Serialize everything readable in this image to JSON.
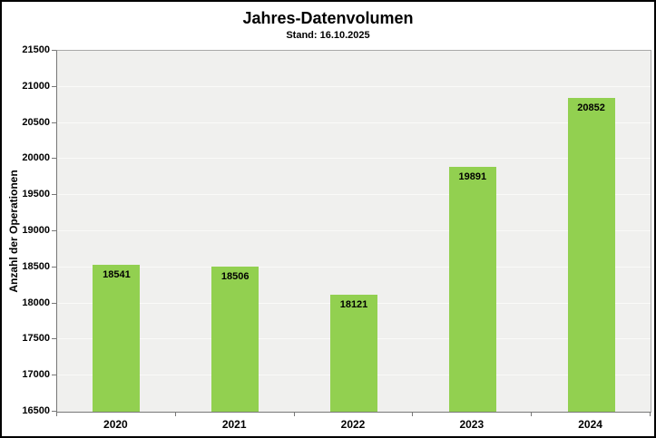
{
  "window": {
    "background": "#ffffff",
    "border_color": "#000000"
  },
  "chart_data": {
    "type": "bar",
    "title": "Jahres-Datenvolumen",
    "subtitle": "Stand: 16.10.2025",
    "xlabel": "",
    "ylabel": "Anzahl der Operationen",
    "categories": [
      "2020",
      "2021",
      "2022",
      "2023",
      "2024"
    ],
    "values": [
      18541,
      18506,
      18121,
      19891,
      20852
    ],
    "value_labels": [
      "18541",
      "18506",
      "18121",
      "19891",
      "20852"
    ],
    "ylim": [
      16500,
      21500
    ],
    "ytick_step": 500,
    "yticks": [
      16500,
      17000,
      17500,
      18000,
      18500,
      19000,
      19500,
      20000,
      20500,
      21000,
      21500
    ],
    "grid": "horizontal",
    "legend": "none",
    "data_labels": "inside-top",
    "colors": {
      "bar_fill": "#92d050",
      "plot_background": "#f0f0ee",
      "gridline": "#fafaf8",
      "axis_line": "#777777",
      "frame_line": "#a8a8a8",
      "text": "#000000"
    }
  }
}
